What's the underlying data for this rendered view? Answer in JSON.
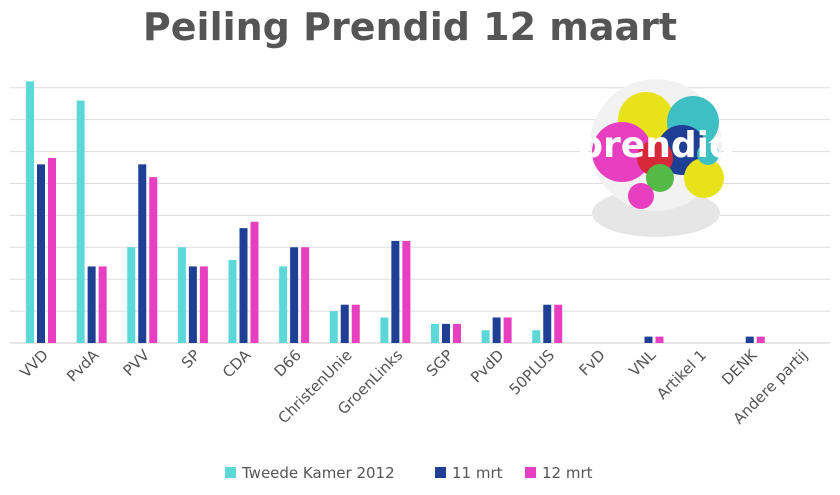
{
  "chart_data": {
    "type": "bar",
    "title": "Peiling Prendid 12 maart",
    "categories": [
      "VVD",
      "PvdA",
      "PVV",
      "SP",
      "CDA",
      "D66",
      "ChristenUnie",
      "GroenLinks",
      "SGP",
      "PvdD",
      "50PLUS",
      "FvD",
      "VNL",
      "Artikel 1",
      "DENK",
      "Andere partij"
    ],
    "series": [
      {
        "name": "Tweede Kamer 2012",
        "color": "#5DD8D8",
        "values": [
          41,
          38,
          15,
          15,
          13,
          12,
          5,
          4,
          3,
          2,
          2,
          0,
          0,
          0,
          0,
          0
        ]
      },
      {
        "name": "11 mrt",
        "color": "#1F3F95",
        "values": [
          28,
          12,
          28,
          12,
          18,
          15,
          6,
          16,
          3,
          4,
          6,
          0,
          1,
          0,
          1,
          0
        ]
      },
      {
        "name": "12 mrt",
        "color": "#E83FC0",
        "values": [
          29,
          12,
          26,
          12,
          19,
          15,
          6,
          16,
          3,
          4,
          6,
          0,
          1,
          0,
          1,
          0
        ]
      }
    ],
    "ylim": [
      0,
      42
    ],
    "grid": true,
    "legend_position": "bottom",
    "xlabel": "",
    "ylabel": ""
  },
  "logo": {
    "text": "prendid",
    "icon": "prendid-logo-icon",
    "colors": [
      "#E8E21A",
      "#3DBFC4",
      "#E83FC0",
      "#1F3F95",
      "#D8293A",
      "#55B948"
    ]
  }
}
